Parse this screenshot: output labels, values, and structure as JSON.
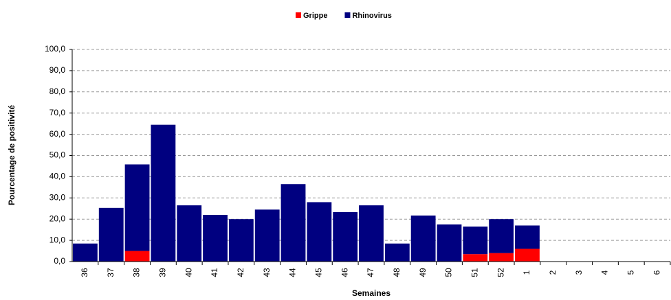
{
  "chart_data": {
    "type": "stacked_bar",
    "xlabel": "Semaines",
    "ylabel": "Pourcentage de positivité",
    "categories": [
      "36",
      "37",
      "38",
      "39",
      "40",
      "41",
      "42",
      "43",
      "44",
      "45",
      "46",
      "47",
      "48",
      "49",
      "50",
      "51",
      "52",
      "1",
      "2",
      "3",
      "4",
      "5",
      "6"
    ],
    "series": [
      {
        "name": "Grippe",
        "color": "#ff0000",
        "values": [
          0,
          0,
          5,
          0,
          0,
          0,
          0,
          0,
          0,
          0,
          0,
          0,
          0,
          0,
          0,
          3.5,
          4,
          6,
          0,
          0,
          0,
          0,
          0
        ]
      },
      {
        "name": "Rhinovirus",
        "color": "#000080",
        "values": [
          8.5,
          25.3,
          40.8,
          64.5,
          26.5,
          22,
          20,
          24.5,
          36.5,
          28,
          23.3,
          26.5,
          8.5,
          21.7,
          17.5,
          13,
          16,
          11,
          0,
          0,
          0,
          0,
          0
        ]
      }
    ],
    "ylim": [
      0,
      100
    ],
    "yticks": [
      {
        "value": 0,
        "label": "0,0"
      },
      {
        "value": 10,
        "label": "10,0"
      },
      {
        "value": 20,
        "label": "20,0"
      },
      {
        "value": 30,
        "label": "30,0"
      },
      {
        "value": 40,
        "label": "40,0"
      },
      {
        "value": 50,
        "label": "50,0"
      },
      {
        "value": 60,
        "label": "60,0"
      },
      {
        "value": 70,
        "label": "70,0"
      },
      {
        "value": 80,
        "label": "80,0"
      },
      {
        "value": 90,
        "label": "90,0"
      },
      {
        "value": 100,
        "label": "100,0"
      }
    ],
    "grid": true,
    "legend": "top"
  }
}
